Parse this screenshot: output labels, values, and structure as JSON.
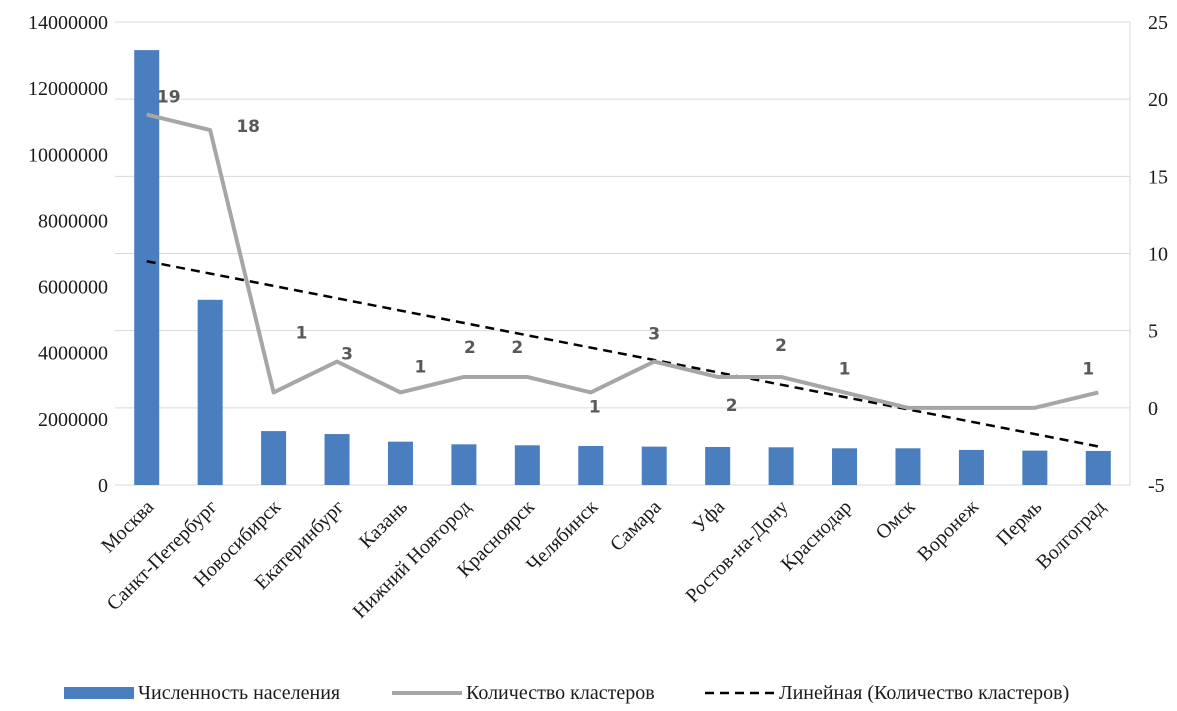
{
  "chart_data": {
    "type": "bar",
    "categories": [
      "Москва",
      "Санкт-Петербург",
      "Новосибирск",
      "Екатеринбург",
      "Казань",
      "Нижний Новгород",
      "Красноярск",
      "Челябинск",
      "Самара",
      "Уфа",
      "Ростов-на-Дону",
      "Краснодар",
      "Омск",
      "Воронеж",
      "Пермь",
      "Волгоград"
    ],
    "series": [
      {
        "name": "Численность населения",
        "type": "bar",
        "axis": "left",
        "color": "#4a7ebf",
        "values": [
          13150000,
          5600000,
          1630000,
          1540000,
          1310000,
          1230000,
          1200000,
          1180000,
          1160000,
          1150000,
          1140000,
          1110000,
          1110000,
          1060000,
          1040000,
          1030000
        ]
      },
      {
        "name": "Количество кластеров",
        "type": "line",
        "axis": "right",
        "color": "#a6a6a6",
        "values": [
          19,
          18,
          1,
          3,
          1,
          2,
          2,
          1,
          3,
          2,
          2,
          1,
          0,
          0,
          0,
          1
        ],
        "data_labels": [
          "19",
          "18",
          "1",
          "3",
          "1",
          "2",
          "2",
          "1",
          "3",
          "2",
          "2",
          "1",
          "",
          "",
          "",
          "1"
        ]
      },
      {
        "name": "Линейная (Количество кластеров)",
        "type": "trendline",
        "axis": "right",
        "color": "#000000",
        "start": 9.5,
        "end": -2.5
      }
    ],
    "left_axis": {
      "ylim": [
        0,
        14000000
      ],
      "ticks": [
        "0",
        "2000000",
        "4000000",
        "6000000",
        "8000000",
        "10000000",
        "12000000",
        "14000000"
      ]
    },
    "right_axis": {
      "ylim": [
        -5,
        25
      ],
      "ticks": [
        "-5",
        "0",
        "5",
        "10",
        "15",
        "20",
        "25"
      ]
    },
    "grid": true,
    "legend_position": "bottom"
  }
}
